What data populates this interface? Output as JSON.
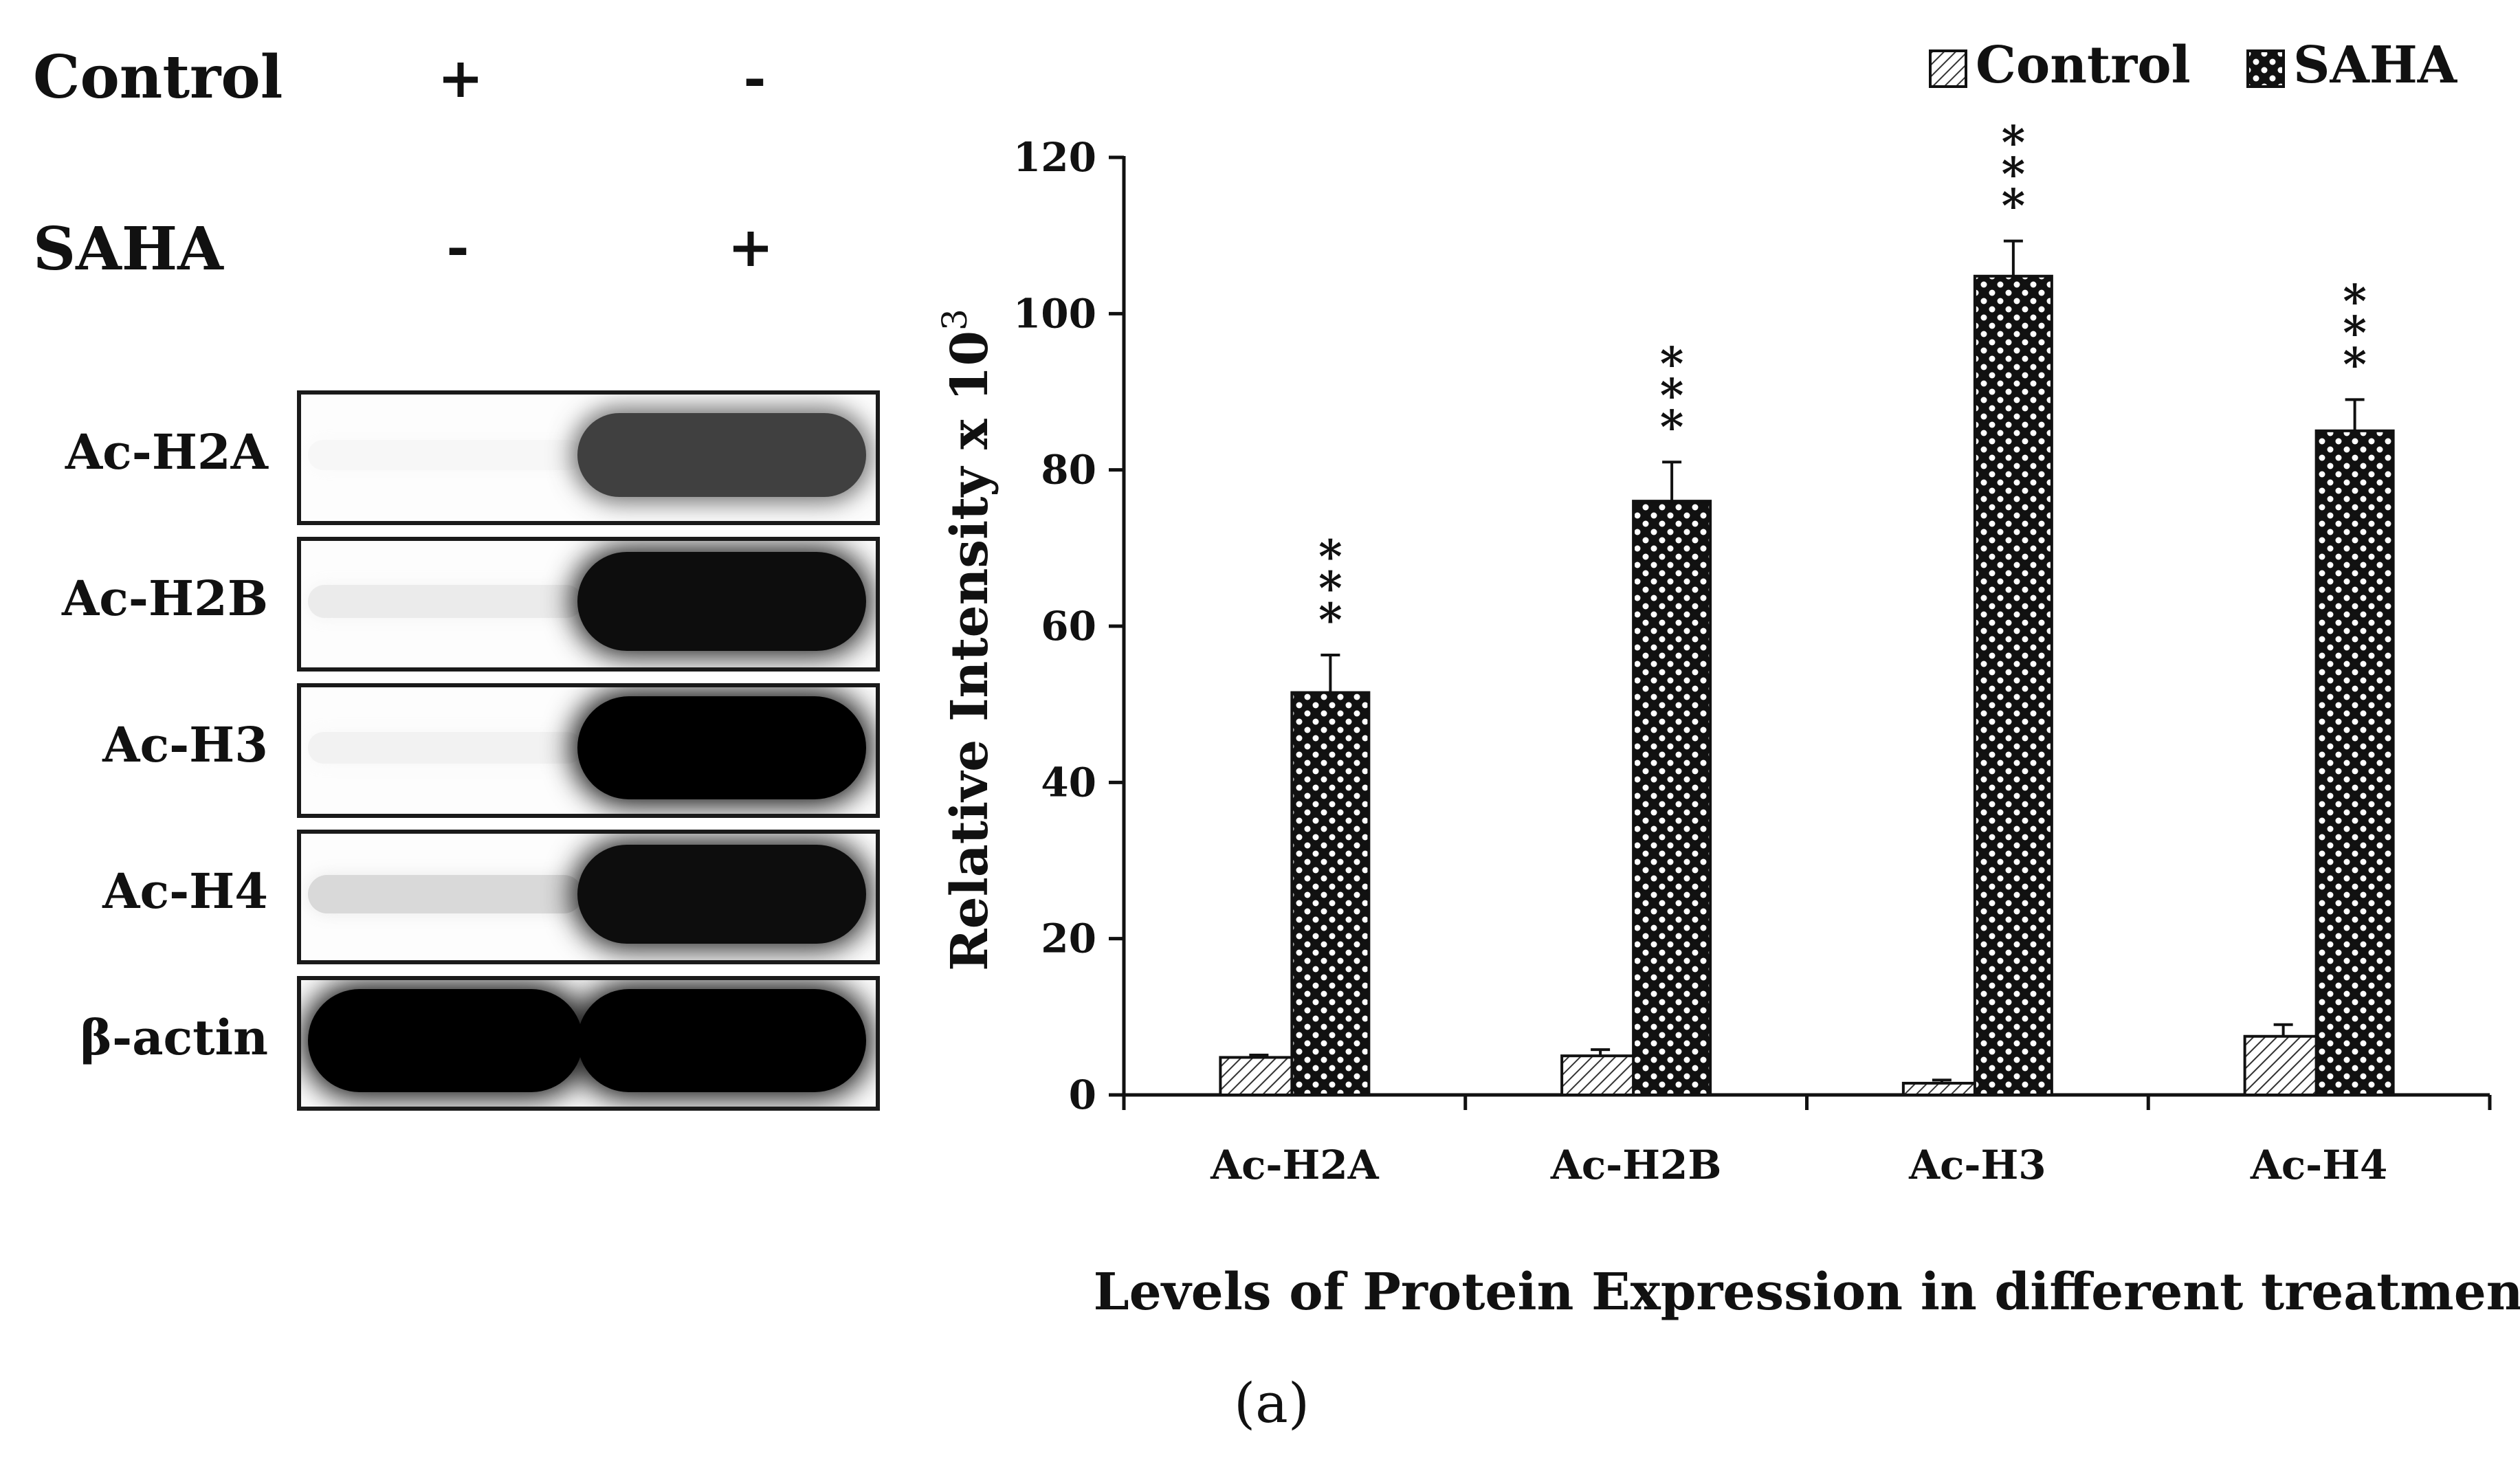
{
  "blot": {
    "conditions": [
      {
        "name": "Control",
        "signs": [
          "+",
          "-"
        ]
      },
      {
        "name": "SAHA",
        "signs": [
          "-",
          "+"
        ]
      }
    ],
    "bands": [
      {
        "label": "Ac-H2A",
        "lane1": 0.03,
        "lane2": 0.75
      },
      {
        "label": "Ac-H2B",
        "lane1": 0.08,
        "lane2": 0.95
      },
      {
        "label": "Ac-H3",
        "lane1": 0.05,
        "lane2": 1.0
      },
      {
        "label": "Ac-H4",
        "lane1": 0.15,
        "lane2": 0.95
      },
      {
        "label": "β-actin",
        "lane1": 1.0,
        "lane2": 1.0
      }
    ]
  },
  "chart_data": {
    "type": "bar",
    "categories": [
      "Ac-H2A",
      "Ac-H2B",
      "Ac-H3",
      "Ac-H4"
    ],
    "series": [
      {
        "name": "Control",
        "values": [
          4.8,
          5.0,
          1.5,
          7.5
        ],
        "errors": [
          0.3,
          0.8,
          0.4,
          1.5
        ],
        "pattern": "diagonal-hatch"
      },
      {
        "name": "SAHA",
        "values": [
          51.5,
          76.0,
          104.8,
          85.0
        ],
        "errors": [
          4.8,
          5.0,
          4.5,
          4.0
        ],
        "pattern": "checker-dots",
        "annotation": "***"
      }
    ],
    "ylabel": "Relative Intensity x 10",
    "ylabel_superscript": "3",
    "xlabel": "Levels of Protein Expression in different treatments",
    "ylim": [
      0,
      120
    ],
    "yticks": [
      0,
      20,
      40,
      60,
      80,
      100,
      120
    ],
    "legend_position": "top-right",
    "grid": false
  },
  "panel_label": "(a)"
}
